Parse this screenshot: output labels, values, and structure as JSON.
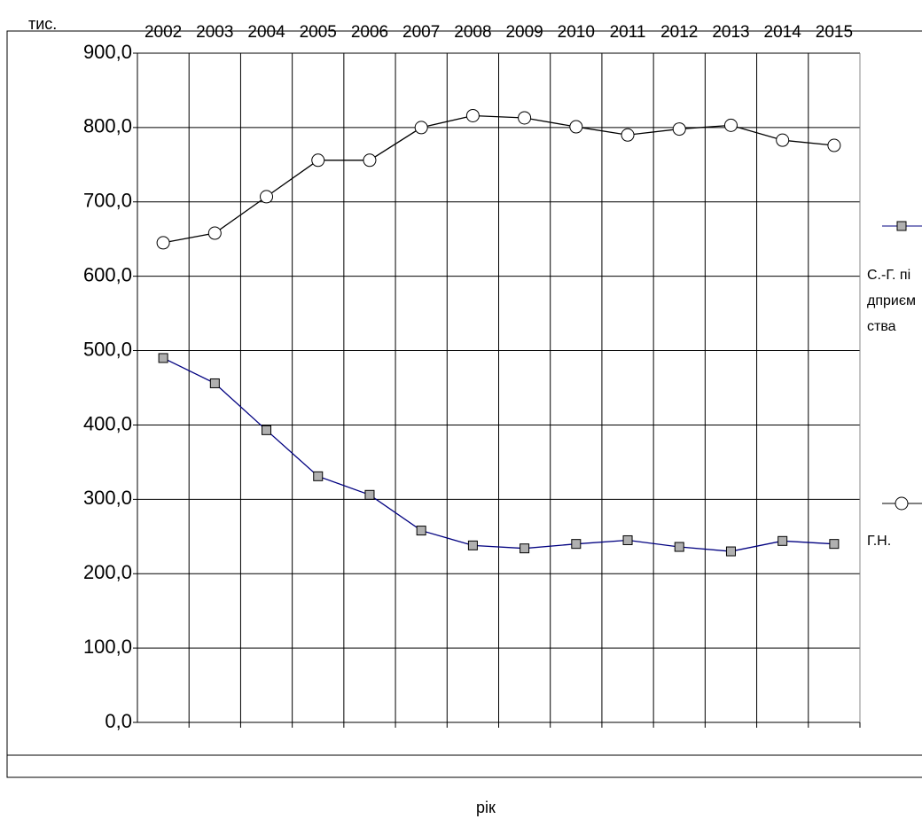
{
  "chart_data": {
    "type": "line",
    "y_label": "тис.",
    "x_label": "рік",
    "categories": [
      "2002",
      "2003",
      "2004",
      "2005",
      "2006",
      "2007",
      "2008",
      "2009",
      "2010",
      "2011",
      "2012",
      "2013",
      "2014",
      "2015"
    ],
    "series": [
      {
        "name": "С.-Г. підприємства",
        "color": "#000080",
        "marker": "square",
        "values": [
          490,
          456,
          393,
          331,
          306,
          258,
          238,
          234,
          240,
          245,
          236,
          230,
          244,
          240
        ]
      },
      {
        "name": "Г.Н.",
        "color": "#000000",
        "marker": "circle",
        "values": [
          645,
          658,
          707,
          756,
          756,
          800,
          816,
          813,
          801,
          790,
          798,
          803,
          783,
          776
        ]
      }
    ],
    "ylim": [
      0,
      900
    ],
    "yticks": [
      {
        "value": 0,
        "label": "0,0"
      },
      {
        "value": 100,
        "label": "100,0"
      },
      {
        "value": 200,
        "label": "200,0"
      },
      {
        "value": 300,
        "label": "300,0"
      },
      {
        "value": 400,
        "label": "400,0"
      },
      {
        "value": 500,
        "label": "500,0"
      },
      {
        "value": 600,
        "label": "600,0"
      },
      {
        "value": 700,
        "label": "700,0"
      },
      {
        "value": 800,
        "label": "800,0"
      },
      {
        "value": 900,
        "label": "900,0"
      }
    ],
    "grid": true
  }
}
